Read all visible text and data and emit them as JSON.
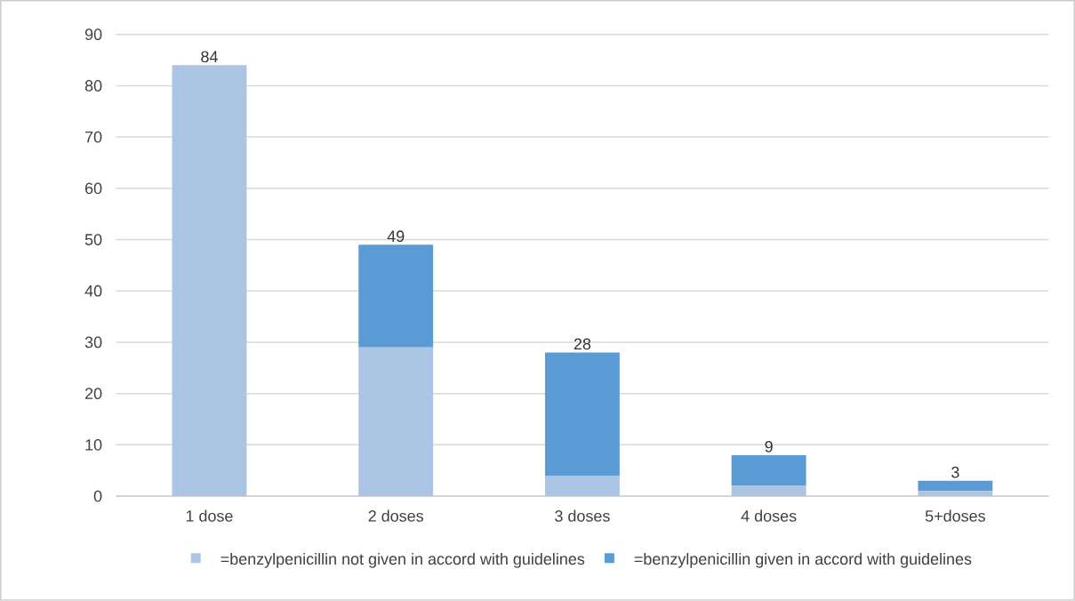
{
  "chart_data": {
    "type": "bar",
    "stacked": true,
    "categories": [
      "1 dose",
      "2 doses",
      "3 doses",
      "4 doses",
      "5+doses"
    ],
    "series": [
      {
        "name": "=benzylpenicillin not given in accord with guidelines",
        "color": "#adc5e5",
        "values": [
          84,
          29,
          4,
          2,
          1
        ]
      },
      {
        "name": "=benzylpenicillin given in accord with guidelines",
        "color": "#5b9bd5",
        "values": [
          0,
          20,
          24,
          6,
          2
        ]
      }
    ],
    "totals": [
      "84",
      "49",
      "28",
      "9",
      "3"
    ],
    "ylim": [
      0,
      90
    ],
    "yticks": [
      0,
      10,
      20,
      30,
      40,
      50,
      60,
      70,
      80,
      90
    ],
    "grid": "y",
    "legend": "bottom"
  }
}
